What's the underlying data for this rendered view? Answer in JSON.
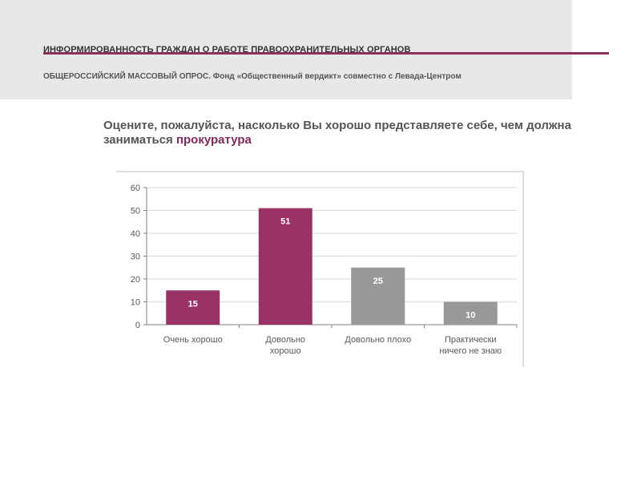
{
  "header": {
    "title": "ИНФОРМИРОВАННОСТЬ ГРАЖДАН О РАБОТЕ ПРАВООХРАНИТЕЛЬНЫХ ОРГАНОВ",
    "subtitle": "ОБЩЕРОССИЙСКИЙ МАССОВЫЙ ОПРОС. Фонд «Общественный вердикт» совместно с Левада-Центром"
  },
  "question": {
    "text": "Оцените, пожалуйста, насколько Вы хорошо представляете себе, чем должна заниматься ",
    "accent": "прокуратура"
  },
  "colors": {
    "accent": "#8f2f5e",
    "bar_positive": "#993366",
    "bar_negative": "#999999"
  },
  "chart_data": {
    "type": "bar",
    "categories": [
      [
        "Очень хорошо"
      ],
      [
        "Довольно",
        "хорошо"
      ],
      [
        "Довольно плохо"
      ],
      [
        "Практически",
        "ничего не знаю"
      ]
    ],
    "values": [
      15,
      51,
      25,
      10
    ],
    "bar_colors": [
      "#993366",
      "#993366",
      "#999999",
      "#999999"
    ],
    "ylim": [
      0,
      60
    ],
    "yticks": [
      "0",
      "10",
      "20",
      "30",
      "40",
      "50",
      "60"
    ],
    "grid": true
  }
}
